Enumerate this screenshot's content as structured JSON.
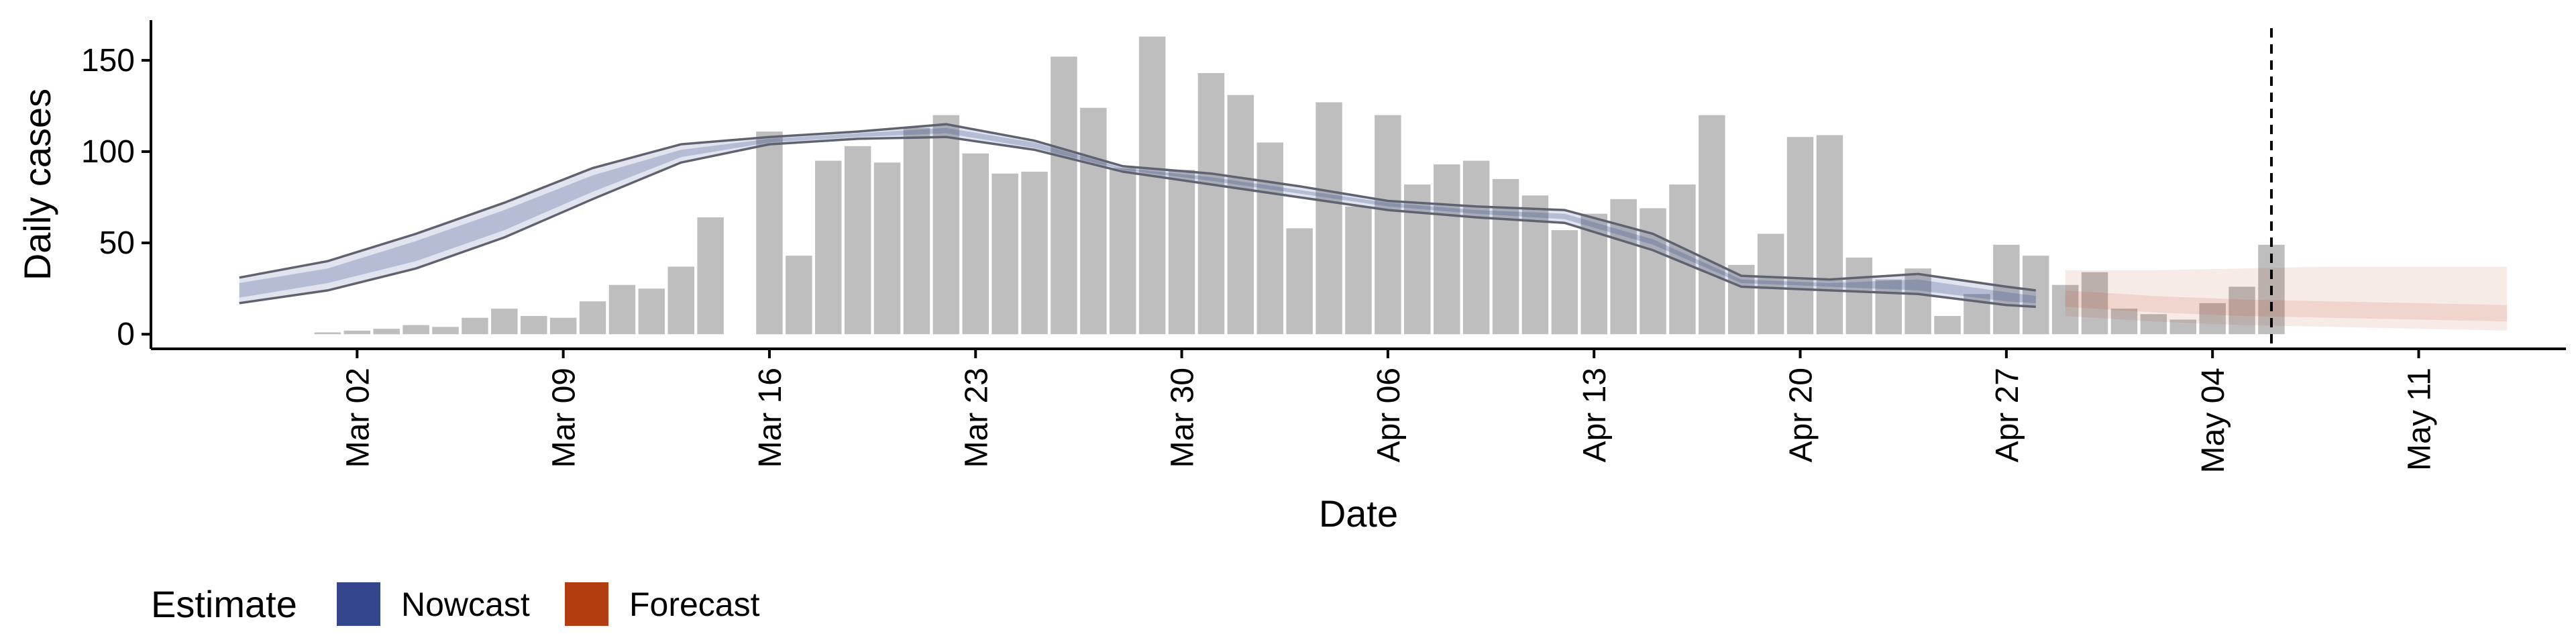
{
  "chart_data": {
    "type": "bar",
    "xlabel": "Date",
    "ylabel": "Daily cases",
    "ylim": [
      -8,
      172
    ],
    "y_ticks": [
      0,
      50,
      100,
      150
    ],
    "x_ticks": [
      "2020-03-02",
      "2020-03-09",
      "2020-03-16",
      "2020-03-23",
      "2020-03-30",
      "2020-04-06",
      "2020-04-13",
      "2020-04-20",
      "2020-04-27",
      "2020-05-04",
      "2020-05-11"
    ],
    "x_tick_labels": [
      "Mar 02",
      "Mar 09",
      "Mar 16",
      "Mar 23",
      "Mar 30",
      "Apr 06",
      "Apr 13",
      "Apr 20",
      "Apr 27",
      "May 04",
      "May 11"
    ],
    "xlim": [
      "2020-02-24",
      "2020-05-16"
    ],
    "vline_date": "2020-05-06",
    "observed": {
      "dates": [
        "2020-03-01",
        "2020-03-02",
        "2020-03-03",
        "2020-03-04",
        "2020-03-05",
        "2020-03-06",
        "2020-03-07",
        "2020-03-08",
        "2020-03-09",
        "2020-03-10",
        "2020-03-11",
        "2020-03-12",
        "2020-03-13",
        "2020-03-14",
        "2020-03-15",
        "2020-03-16",
        "2020-03-17",
        "2020-03-18",
        "2020-03-19",
        "2020-03-20",
        "2020-03-21",
        "2020-03-22",
        "2020-03-23",
        "2020-03-24",
        "2020-03-25",
        "2020-03-26",
        "2020-03-27",
        "2020-03-28",
        "2020-03-29",
        "2020-03-30",
        "2020-03-31",
        "2020-04-01",
        "2020-04-02",
        "2020-04-03",
        "2020-04-04",
        "2020-04-05",
        "2020-04-06",
        "2020-04-07",
        "2020-04-08",
        "2020-04-09",
        "2020-04-10",
        "2020-04-11",
        "2020-04-12",
        "2020-04-13",
        "2020-04-14",
        "2020-04-15",
        "2020-04-16",
        "2020-04-17",
        "2020-04-18",
        "2020-04-19",
        "2020-04-20",
        "2020-04-21",
        "2020-04-22",
        "2020-04-23",
        "2020-04-24",
        "2020-04-25",
        "2020-04-26",
        "2020-04-27",
        "2020-04-28",
        "2020-04-29",
        "2020-04-30",
        "2020-05-01",
        "2020-05-02",
        "2020-05-03",
        "2020-05-04",
        "2020-05-05",
        "2020-05-06"
      ],
      "values": [
        1,
        2,
        3,
        5,
        4,
        9,
        14,
        10,
        9,
        18,
        27,
        25,
        37,
        64,
        0,
        111,
        43,
        95,
        103,
        94,
        113,
        120,
        99,
        88,
        89,
        152,
        124,
        91,
        163,
        90,
        143,
        131,
        105,
        58,
        127,
        70,
        120,
        82,
        93,
        95,
        85,
        76,
        57,
        66,
        74,
        69,
        82,
        120,
        38,
        55,
        108,
        109,
        42,
        30,
        36,
        10,
        22,
        49,
        43,
        27,
        34,
        14,
        11,
        8,
        17,
        26,
        49
      ]
    },
    "series": [
      {
        "name": "Nowcast",
        "color": "#35478c",
        "dates": [
          "2020-02-27",
          "2020-03-01",
          "2020-03-04",
          "2020-03-07",
          "2020-03-10",
          "2020-03-13",
          "2020-03-16",
          "2020-03-19",
          "2020-03-22",
          "2020-03-25",
          "2020-03-28",
          "2020-03-31",
          "2020-04-03",
          "2020-04-06",
          "2020-04-09",
          "2020-04-12",
          "2020-04-15",
          "2020-04-18",
          "2020-04-21",
          "2020-04-24",
          "2020-04-27",
          "2020-04-28"
        ],
        "upper_90": [
          31,
          40,
          55,
          72,
          91,
          104,
          108,
          111,
          115,
          106,
          92,
          88,
          81,
          73,
          70,
          68,
          55,
          32,
          30,
          33,
          26,
          24
        ],
        "lower_90": [
          17,
          24,
          36,
          53,
          74,
          94,
          104,
          107,
          108,
          101,
          89,
          82,
          75,
          68,
          64,
          61,
          46,
          26,
          24,
          22,
          16,
          15
        ],
        "upper_50": [
          28,
          36,
          51,
          68,
          87,
          101,
          107,
          110,
          113,
          105,
          91,
          86,
          79,
          72,
          68,
          66,
          52,
          30,
          28,
          30,
          23,
          21
        ],
        "lower_50": [
          20,
          28,
          40,
          57,
          78,
          97,
          105,
          108,
          110,
          102,
          90,
          84,
          77,
          70,
          66,
          63,
          49,
          28,
          26,
          24,
          18,
          17
        ]
      },
      {
        "name": "Forecast",
        "color": "#b33d11",
        "dates": [
          "2020-04-29",
          "2020-05-02",
          "2020-05-05",
          "2020-05-08",
          "2020-05-11",
          "2020-05-14"
        ],
        "upper_90": [
          35,
          35,
          36,
          37,
          37,
          37
        ],
        "lower_90": [
          10,
          7,
          5,
          4,
          3,
          2
        ],
        "upper_50": [
          24,
          21,
          19,
          18,
          17,
          16
        ],
        "lower_50": [
          15,
          12,
          10,
          9,
          8,
          7
        ]
      }
    ],
    "legend": {
      "title": "Estimate",
      "position": "bottom-left",
      "items": [
        {
          "label": "Nowcast",
          "color": "#35478c"
        },
        {
          "label": "Forecast",
          "color": "#b33d11"
        }
      ]
    },
    "grid": false,
    "colors": {
      "bars": "#bebebe",
      "outline": "#5f6370",
      "vline": "#000000"
    }
  }
}
